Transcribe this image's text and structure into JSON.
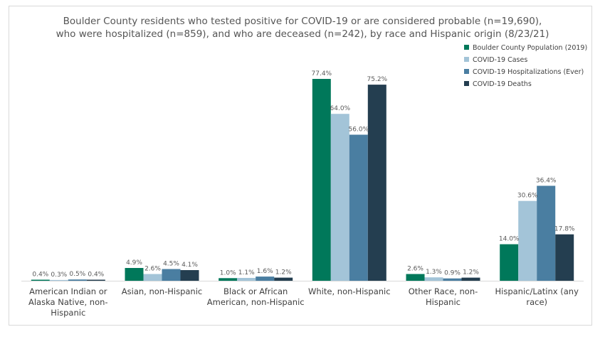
{
  "chart_data": {
    "type": "bar",
    "title": [
      "Boulder County residents who tested positive for COVID-19 or are considered probable (n=19,690),",
      "who were hospitalized (n=859), and who are deceased (n=242), by race and Hispanic origin (8/23/21)"
    ],
    "categories": [
      [
        "American Indian or",
        "Alaska Native, non-",
        "Hispanic"
      ],
      [
        "Asian, non-Hispanic"
      ],
      [
        "Black or African",
        "American, non-Hispanic"
      ],
      [
        "White, non-Hispanic"
      ],
      [
        "Other Race, non-",
        "Hispanic"
      ],
      [
        "Hispanic/Latinx (any",
        "race)"
      ]
    ],
    "series": [
      {
        "name": "Boulder County Population (2019)",
        "color": "#00785a",
        "values": [
          0.4,
          4.9,
          1.0,
          77.4,
          2.6,
          14.0
        ],
        "labels": [
          "0.4%",
          "4.9%",
          "1.0%",
          "77.4%",
          "2.6%",
          "14.0%"
        ]
      },
      {
        "name": "COVID-19 Cases",
        "color": "#a3c4d8",
        "values": [
          0.3,
          2.6,
          1.1,
          64.0,
          1.3,
          30.6
        ],
        "labels": [
          "0.3%",
          "2.6%",
          "1.1%",
          "64.0%",
          "1.3%",
          "30.6%"
        ]
      },
      {
        "name": "COVID-19 Hospitalizations (Ever)",
        "color": "#4a7ea1",
        "values": [
          0.5,
          4.5,
          1.6,
          56.0,
          0.9,
          36.4
        ],
        "labels": [
          "0.5%",
          "4.5%",
          "1.6%",
          "56.0%",
          "0.9%",
          "36.4%"
        ]
      },
      {
        "name": "COVID-19 Deaths",
        "color": "#243e50",
        "values": [
          0.4,
          4.1,
          1.2,
          75.2,
          1.2,
          17.8
        ],
        "labels": [
          "0.4%",
          "4.1%",
          "1.2%",
          "75.2%",
          "1.2%",
          "17.8%"
        ]
      }
    ],
    "ylim": [
      0,
      77.4
    ],
    "legend": "top-right",
    "grid": false
  }
}
